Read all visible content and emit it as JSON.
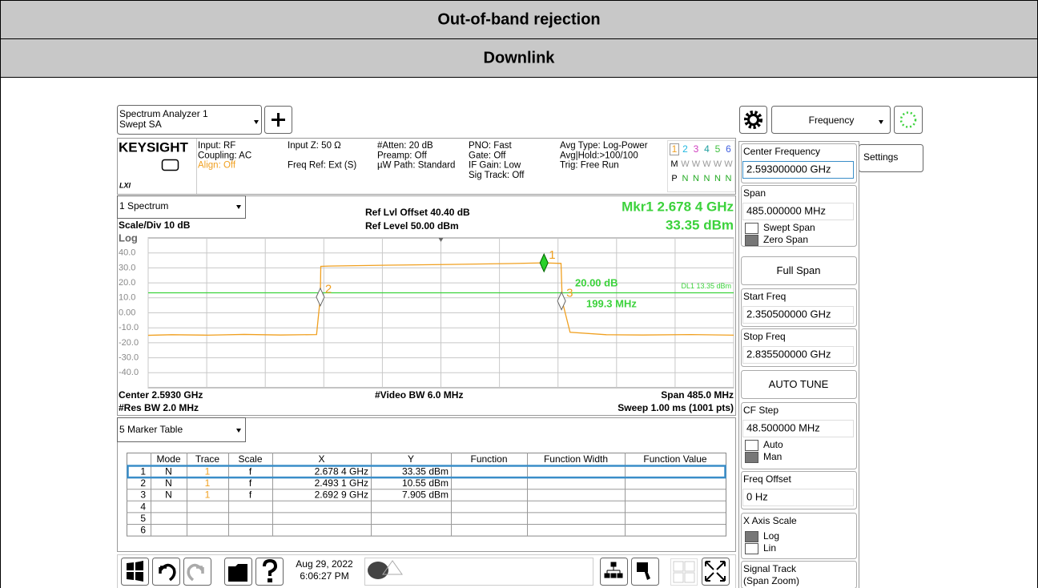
{
  "header": {
    "title": "Out-of-band rejection",
    "subtitle": "Downlink"
  },
  "toolbar": {
    "mode": "Spectrum Analyzer 1",
    "measurement": "Swept SA",
    "menu": "Frequency",
    "tab": "Settings"
  },
  "status": {
    "brand": "KEYSIGHT",
    "lxi": "LXI",
    "columns": [
      [
        "Input: RF",
        "Coupling: AC",
        "Align: Off"
      ],
      [
        "Input Z: 50 Ω",
        "Freq Ref: Ext (S)"
      ],
      [
        "#Atten: 20 dB",
        "Preamp: Off",
        "µW Path: Standard"
      ],
      [
        "PNO: Fast",
        "Gate: Off",
        "IF Gain: Low",
        "Sig Track: Off"
      ],
      [
        "Avg Type: Log-Power",
        "Avg|Hold:>100/100",
        "Trig: Free Run"
      ]
    ],
    "traces": [
      [
        "1",
        "2",
        "3",
        "4",
        "5",
        "6"
      ],
      [
        "M",
        "W",
        "W",
        "W",
        "W",
        "W"
      ],
      [
        "P",
        "N",
        "N",
        "N",
        "N",
        "N"
      ]
    ]
  },
  "spectrum": {
    "window": "1 Spectrum",
    "ref_offset": "Ref Lvl Offset 40.40 dB",
    "ref_level": "Ref Level 50.00 dBm",
    "marker_readout": "Mkr1  2.678 4 GHz",
    "marker_value": "33.35 dBm",
    "scale": "Scale/Div 10 dB",
    "scale_type": "Log",
    "xlim": [
      2.3505,
      2.8355
    ],
    "xticks": [
      2.3505,
      2.399,
      2.4475,
      2.496,
      2.5445,
      2.593,
      2.6415,
      2.69,
      2.7385,
      2.787,
      2.8355
    ],
    "ylim": [
      -50,
      50
    ],
    "yticks": [
      {
        "value": 40,
        "label": "40.0"
      },
      {
        "value": 30,
        "label": "30.0"
      },
      {
        "value": 20,
        "label": "20.0"
      },
      {
        "value": 10,
        "label": "10.0"
      },
      {
        "value": 0,
        "label": "0.00"
      },
      {
        "value": -10,
        "label": "-10.0"
      },
      {
        "value": -20,
        "label": "-20.0"
      },
      {
        "value": -30,
        "label": "-30.0"
      },
      {
        "value": -40,
        "label": "-40.0"
      }
    ],
    "trace": {
      "color": "#f0a020",
      "x": [
        2.3505,
        2.37,
        2.4,
        2.43,
        2.46,
        2.49,
        2.4931,
        2.4935,
        2.5,
        2.55,
        2.6,
        2.65,
        2.678,
        2.6925,
        2.6935,
        2.7,
        2.73,
        2.76,
        2.8,
        2.8355
      ],
      "y": [
        -15,
        -14.6,
        -14.9,
        -14.4,
        -14.8,
        -14.5,
        10.55,
        31,
        31.2,
        31.8,
        32.3,
        32.9,
        33.35,
        33,
        7.9,
        -13,
        -14.6,
        -14.8,
        -14.5,
        -14.9
      ]
    },
    "display_line": {
      "label": "DL1 13.35 dBm",
      "value": 13.35,
      "color": "#3cd23c"
    },
    "markers": [
      {
        "label": "1",
        "x": 2.6784,
        "y": 33.35
      },
      {
        "label": "2",
        "x": 2.4931,
        "y": 10.55
      },
      {
        "label": "3",
        "x": 2.6929,
        "y": 7.905
      }
    ],
    "delta": [
      "20.00 dB",
      "199.3 MHz"
    ],
    "footer": [
      "Center 2.5930 GHz",
      "#Video BW 6.0 MHz",
      "Span 485.0 MHz",
      "#Res BW 2.0 MHz",
      "Sweep 1.00 ms (1001 pts)"
    ]
  },
  "marker_table": {
    "window": "5 Marker Table",
    "columns": [
      "Mode",
      "Trace",
      "Scale",
      "X",
      "Y",
      "Function",
      "Function Width",
      "Function Value"
    ],
    "rows": [
      [
        "1",
        "N",
        "1",
        "f",
        "2.678 4 GHz",
        "33.35 dBm"
      ],
      [
        "2",
        "N",
        "1",
        "f",
        "2.493 1 GHz",
        "10.55 dBm"
      ],
      [
        "3",
        "N",
        "1",
        "f",
        "2.692 9 GHz",
        "7.905 dBm"
      ],
      [
        "4"
      ],
      [
        "5"
      ],
      [
        "6"
      ]
    ]
  },
  "softkeys": [
    {
      "label": "Center Frequency",
      "value": "2.593000000 GHz"
    },
    {
      "label": "Span",
      "value": "485.000000 MHz",
      "options": [
        "Swept Span",
        "Zero Span"
      ]
    },
    {
      "button": "Full Span"
    },
    {
      "label": "Start Freq",
      "value": "2.350500000 GHz"
    },
    {
      "label": "Stop Freq",
      "value": "2.835500000 GHz"
    },
    {
      "button": "AUTO TUNE"
    },
    {
      "label": "CF Step",
      "value": "48.500000 MHz",
      "options": [
        "Auto",
        "Man"
      ]
    },
    {
      "label": "Freq Offset",
      "value": "0 Hz"
    },
    {
      "label": "X Axis Scale",
      "options": [
        "Log",
        "Lin"
      ]
    },
    {
      "label": "Signal Track",
      "note": "(Span Zoom)"
    }
  ],
  "taskbar": {
    "date": "Aug 29, 2022",
    "time": "6:06:27 PM"
  }
}
